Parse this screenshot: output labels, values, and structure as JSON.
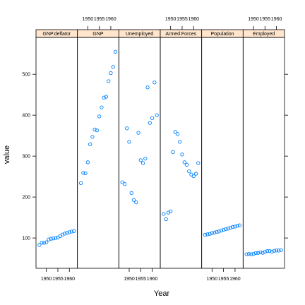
{
  "chart_data": {
    "type": "scatter",
    "layout": "trellis",
    "xlabel": "Year",
    "ylabel": "value",
    "xlim": [
      1945.5,
      1963.5
    ],
    "ylim": [
      26,
      590
    ],
    "xticks": [
      1950,
      1955,
      1960
    ],
    "yticks": [
      100,
      200,
      300,
      400,
      500
    ],
    "x": [
      1947,
      1948,
      1949,
      1950,
      1951,
      1952,
      1953,
      1954,
      1955,
      1956,
      1957,
      1958,
      1959,
      1960,
      1961,
      1962
    ],
    "series": [
      {
        "name": "GNP.deflator",
        "values": [
          83,
          88.5,
          88.2,
          89.5,
          96.2,
          98.1,
          99,
          100,
          101.2,
          104.6,
          108.4,
          110.8,
          112.6,
          114.2,
          115.7,
          116.9
        ]
      },
      {
        "name": "GNP",
        "values": [
          234,
          259,
          258,
          285,
          329,
          347,
          365,
          363,
          397,
          419,
          443,
          445,
          483,
          503,
          518,
          555
        ]
      },
      {
        "name": "Unemployed",
        "values": [
          236,
          232,
          368,
          335,
          210,
          193,
          187,
          357,
          290,
          283,
          294,
          468,
          381,
          393,
          480,
          400
        ]
      },
      {
        "name": "Armed.Forces",
        "values": [
          159,
          146,
          162,
          165,
          310,
          359,
          354,
          335,
          304,
          285,
          279,
          263,
          255,
          251,
          257,
          283
        ]
      },
      {
        "name": "Population",
        "values": [
          108,
          109,
          110,
          112,
          113,
          115,
          116,
          118,
          120,
          122,
          123,
          125,
          127,
          128,
          130,
          131
        ]
      },
      {
        "name": "Employed",
        "values": [
          60.3,
          61.1,
          60.2,
          61.2,
          63.2,
          63.6,
          65,
          63.8,
          66,
          67.9,
          68.2,
          66.5,
          68.7,
          69.6,
          69.3,
          70.6
        ]
      }
    ],
    "colors": {
      "point": "#0080ff",
      "strip": "#ffe5cc",
      "frame": "#000000"
    },
    "grid": false,
    "legend": "none"
  }
}
